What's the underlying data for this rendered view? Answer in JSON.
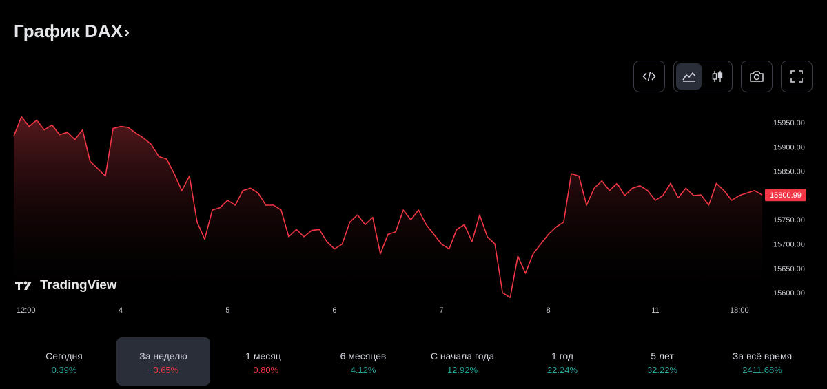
{
  "header": {
    "title": "График DAX",
    "chevron": "›"
  },
  "toolbar": {
    "icons": [
      "code-embed-icon",
      "area-chart-icon",
      "candlestick-chart-icon",
      "camera-icon",
      "fullscreen-icon"
    ]
  },
  "watermark": {
    "text": "TradingView",
    "logo": "tradingview-logo"
  },
  "colors": {
    "line": "#f23645",
    "fill_top": "#5a1a1e",
    "positive": "#26a69a",
    "negative": "#f23645",
    "last_price_bg": "#f23645"
  },
  "chart_data": {
    "type": "area",
    "title": "",
    "xlabel": "",
    "ylabel": "",
    "ylim": [
      15580,
      15980
    ],
    "y_ticks": [
      "15950.00",
      "15900.00",
      "15850.00",
      "15800.00",
      "15750.00",
      "15700.00",
      "15650.00",
      "15600.00"
    ],
    "x_ticks": [
      {
        "label": "12:00",
        "x": 0
      },
      {
        "label": "4",
        "x": 14
      },
      {
        "label": "5",
        "x": 28
      },
      {
        "label": "6",
        "x": 42
      },
      {
        "label": "7",
        "x": 56
      },
      {
        "label": "8",
        "x": 70
      },
      {
        "label": "11",
        "x": 84
      },
      {
        "label": "18:00",
        "x": 95
      }
    ],
    "last_price": "15800.99",
    "x": [
      0,
      1,
      2,
      3,
      4,
      5,
      6,
      7,
      8,
      9,
      10,
      11,
      12,
      13,
      14,
      15,
      16,
      17,
      18,
      19,
      20,
      21,
      22,
      23,
      24,
      25,
      26,
      27,
      28,
      29,
      30,
      31,
      32,
      33,
      34,
      35,
      36,
      37,
      38,
      39,
      40,
      41,
      42,
      43,
      44,
      45,
      46,
      47,
      48,
      49,
      50,
      51,
      52,
      53,
      54,
      55,
      56,
      57,
      58,
      59,
      60,
      61,
      62,
      63,
      64,
      65,
      66,
      67,
      68,
      69,
      70,
      71,
      72,
      73,
      74,
      75,
      76,
      77,
      78,
      79,
      80,
      81,
      82,
      83,
      84,
      85,
      86,
      87,
      88,
      89,
      90,
      91,
      92,
      93,
      94,
      95,
      96,
      97,
      98
    ],
    "values": [
      15922,
      15962,
      15942,
      15955,
      15935,
      15945,
      15925,
      15930,
      15915,
      15935,
      15870,
      15855,
      15840,
      15938,
      15942,
      15940,
      15928,
      15918,
      15905,
      15880,
      15875,
      15845,
      15810,
      15840,
      15745,
      15710,
      15770,
      15775,
      15790,
      15780,
      15810,
      15815,
      15805,
      15780,
      15780,
      15770,
      15715,
      15730,
      15715,
      15728,
      15730,
      15705,
      15690,
      15700,
      15745,
      15760,
      15740,
      15755,
      15680,
      15720,
      15725,
      15770,
      15750,
      15770,
      15740,
      15720,
      15700,
      15690,
      15730,
      15740,
      15705,
      15760,
      15715,
      15700,
      15600,
      15590,
      15675,
      15640,
      15680,
      15700,
      15720,
      15735,
      15745,
      15845,
      15840,
      15780,
      15815,
      15830,
      15810,
      15825,
      15800,
      15815,
      15820,
      15810,
      15790,
      15800,
      15825,
      15795,
      15815,
      15800,
      15801,
      15780,
      15825,
      15810,
      15790,
      15800,
      15805,
      15810,
      15801
    ]
  },
  "periods": [
    {
      "label": "Сегодня",
      "value": "0.39%",
      "sign": "pos"
    },
    {
      "label": "За неделю",
      "value": "−0.65%",
      "sign": "neg",
      "selected": true
    },
    {
      "label": "1 месяц",
      "value": "−0.80%",
      "sign": "neg"
    },
    {
      "label": "6 месяцев",
      "value": "4.12%",
      "sign": "pos"
    },
    {
      "label": "С начала года",
      "value": "12.92%",
      "sign": "pos"
    },
    {
      "label": "1 год",
      "value": "22.24%",
      "sign": "pos"
    },
    {
      "label": "5 лет",
      "value": "32.22%",
      "sign": "pos"
    },
    {
      "label": "За всё время",
      "value": "2411.68%",
      "sign": "pos"
    }
  ]
}
